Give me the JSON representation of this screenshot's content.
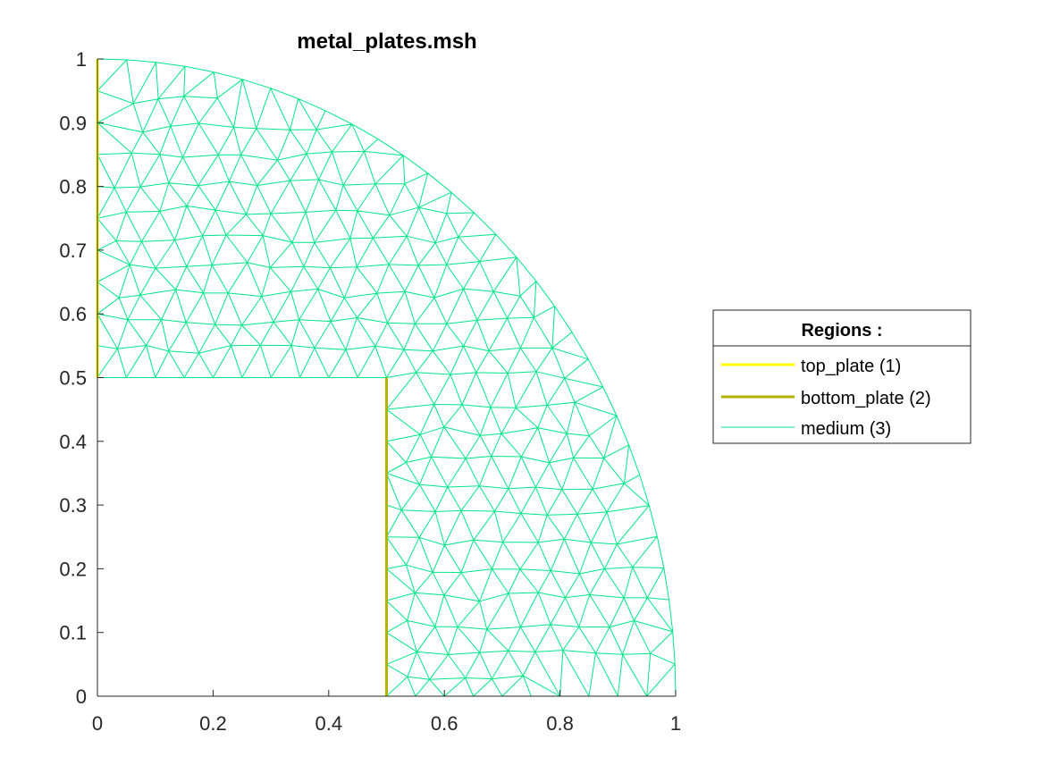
{
  "chart_data": {
    "type": "mesh",
    "title": "metal_plates.msh",
    "xlabel": "",
    "ylabel": "",
    "xlim": [
      0,
      1
    ],
    "ylim": [
      0,
      1
    ],
    "x_ticks": [
      0,
      0.2,
      0.4,
      0.6,
      0.8,
      1
    ],
    "x_tick_labels": [
      "0",
      "0.2",
      "0.4",
      "0.6",
      "0.8",
      "1"
    ],
    "y_ticks": [
      0,
      0.1,
      0.2,
      0.3,
      0.4,
      0.5,
      0.6,
      0.7,
      0.8,
      0.9,
      1
    ],
    "y_tick_labels": [
      "0",
      "0.1",
      "0.2",
      "0.3",
      "0.4",
      "0.5",
      "0.6",
      "0.7",
      "0.8",
      "0.9",
      "1"
    ],
    "grid": false,
    "axis_equal": true,
    "domain": {
      "shape": "quarter-disk minus square",
      "radius": 1,
      "cutout": {
        "x": [
          0,
          0.5
        ],
        "y": [
          0,
          0.5
        ]
      }
    },
    "legend": {
      "title": "Regions :",
      "placement": "right",
      "entries": [
        {
          "label": "top_plate (1)",
          "color": "#ffff00"
        },
        {
          "label": "bottom_plate (2)",
          "color": "#b3b300"
        },
        {
          "label": "medium (3)",
          "color": "#00e68a"
        }
      ]
    },
    "series": [
      {
        "name": "top_plate (1)",
        "kind": "edge",
        "color": "#ffff00",
        "x": [
          0,
          0
        ],
        "y": [
          0.5,
          1
        ]
      },
      {
        "name": "bottom_plate (2)",
        "kind": "edge",
        "color": "#b3b300",
        "x": [
          0.5,
          0.5
        ],
        "y": [
          0,
          0.5
        ]
      },
      {
        "name": "medium (3)",
        "kind": "triangulation",
        "color": "#00e68a",
        "element_size": 0.05
      }
    ]
  }
}
